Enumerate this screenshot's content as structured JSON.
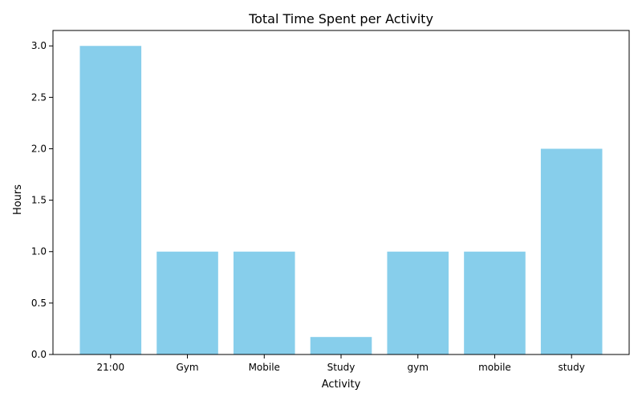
{
  "chart_data": {
    "type": "bar",
    "title": "Total Time Spent per Activity",
    "xlabel": "Activity",
    "ylabel": "Hours",
    "categories": [
      "21:00",
      "Gym",
      "Mobile",
      "Study",
      "gym",
      "mobile",
      "study"
    ],
    "values": [
      3.0,
      1.0,
      1.0,
      0.17,
      1.0,
      1.0,
      2.0
    ],
    "ylim": [
      0,
      3.15
    ],
    "yticks": [
      "0.0",
      "0.5",
      "1.0",
      "1.5",
      "2.0",
      "2.5",
      "3.0"
    ],
    "grid": false,
    "bar_color": "#87CEEB"
  }
}
